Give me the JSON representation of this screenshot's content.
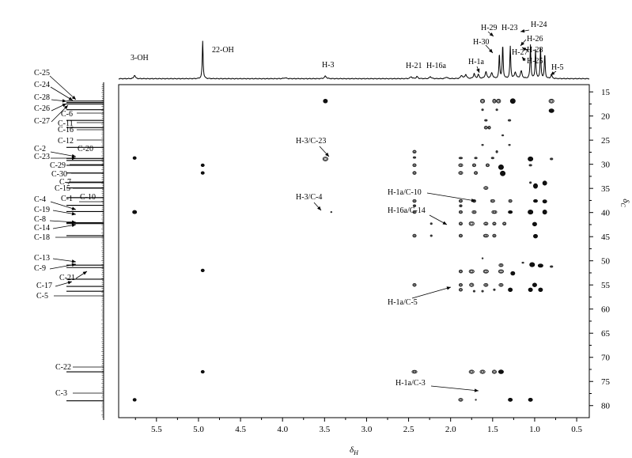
{
  "chart_data": {
    "type": "heatmap",
    "title": "",
    "xlabel": "δH",
    "ylabel": "δC",
    "xlim": [
      5.95,
      0.35
    ],
    "ylim": [
      13.5,
      82.5
    ],
    "x_ticks": [
      5.5,
      5.0,
      4.5,
      4.0,
      3.5,
      3.0,
      2.5,
      2.0,
      1.5,
      1.0,
      0.5
    ],
    "x_tick_labels": [
      "5.5",
      "5.0",
      "4.5",
      "4.0",
      "3.5",
      "3.0",
      "2.5",
      "2.0",
      "1.5",
      "1.0",
      "0.5"
    ],
    "y_ticks": [
      15,
      20,
      25,
      30,
      35,
      40,
      45,
      50,
      55,
      60,
      65,
      70,
      75,
      80
    ],
    "y_tick_labels": [
      "15",
      "20",
      "25",
      "30",
      "35",
      "40",
      "45",
      "50",
      "55",
      "60",
      "65",
      "70",
      "75",
      "80"
    ],
    "grid": false,
    "proton_peaks": [
      {
        "x": 5.76,
        "h": 0.09,
        "w": 0.01
      },
      {
        "x": 4.95,
        "h": 0.92,
        "w": 0.006
      },
      {
        "x": 3.97,
        "h": 0.02,
        "w": 0.02
      },
      {
        "x": 3.49,
        "h": 0.06,
        "w": 0.015
      },
      {
        "x": 2.47,
        "h": 0.05,
        "w": 0.012
      },
      {
        "x": 2.4,
        "h": 0.05,
        "w": 0.012
      },
      {
        "x": 2.24,
        "h": 0.05,
        "w": 0.012
      },
      {
        "x": 2.05,
        "h": 0.04,
        "w": 0.012
      },
      {
        "x": 1.87,
        "h": 0.08,
        "w": 0.012
      },
      {
        "x": 1.82,
        "h": 0.1,
        "w": 0.012
      },
      {
        "x": 1.72,
        "h": 0.12,
        "w": 0.01
      },
      {
        "x": 1.67,
        "h": 0.1,
        "w": 0.01
      },
      {
        "x": 1.58,
        "h": 0.16,
        "w": 0.012
      },
      {
        "x": 1.51,
        "h": 0.14,
        "w": 0.012
      },
      {
        "x": 1.42,
        "h": 0.6,
        "w": 0.006
      },
      {
        "x": 1.38,
        "h": 0.82,
        "w": 0.006
      },
      {
        "x": 1.29,
        "h": 0.78,
        "w": 0.006
      },
      {
        "x": 1.23,
        "h": 0.15,
        "w": 0.012
      },
      {
        "x": 1.16,
        "h": 0.18,
        "w": 0.012
      },
      {
        "x": 1.05,
        "h": 0.82,
        "w": 0.006
      },
      {
        "x": 0.99,
        "h": 0.7,
        "w": 0.006
      },
      {
        "x": 0.93,
        "h": 0.72,
        "w": 0.006
      },
      {
        "x": 0.88,
        "h": 0.6,
        "w": 0.006
      },
      {
        "x": 0.8,
        "h": 0.08,
        "w": 0.01
      }
    ],
    "proton_labels": [
      {
        "text": "3-OH"
      },
      {
        "text": "22-OH"
      },
      {
        "text": "H-3"
      },
      {
        "text": "H-21"
      },
      {
        "text": "H-16a"
      },
      {
        "text": "H-1a"
      },
      {
        "text": "H-30"
      },
      {
        "text": "H-29"
      },
      {
        "text": "H-23"
      },
      {
        "text": "H-27"
      },
      {
        "text": "H-24"
      },
      {
        "text": "H-26"
      },
      {
        "text": "H-28"
      },
      {
        "text": "H-25"
      },
      {
        "text": "H-5"
      }
    ],
    "carbon_peaks": [
      16.9,
      17.2,
      17.5,
      18.7,
      20.9,
      22.4,
      26.5,
      28.8,
      29.2,
      30.2,
      31.8,
      33.8,
      34.9,
      36.9,
      38.5,
      39.8,
      42.1,
      42.3,
      44.8,
      50.9,
      51.4,
      53.8,
      55.3,
      56.3,
      73.0,
      79.0
    ],
    "carbon_labels": [
      {
        "text": "C-25"
      },
      {
        "text": "C-24"
      },
      {
        "text": "C-28"
      },
      {
        "text": "C-26"
      },
      {
        "text": "C-27"
      },
      {
        "text": "C-6"
      },
      {
        "text": "C-11"
      },
      {
        "text": "C-16"
      },
      {
        "text": "C-12"
      },
      {
        "text": "C-20"
      },
      {
        "text": "C-2"
      },
      {
        "text": "C-23"
      },
      {
        "text": "C-29"
      },
      {
        "text": "C-30"
      },
      {
        "text": "C-7"
      },
      {
        "text": "C-15"
      },
      {
        "text": "C-1"
      },
      {
        "text": "C-10"
      },
      {
        "text": "C-4"
      },
      {
        "text": "C-19"
      },
      {
        "text": "C-8"
      },
      {
        "text": "C-14"
      },
      {
        "text": "C-18"
      },
      {
        "text": "C-13"
      },
      {
        "text": "C-9"
      },
      {
        "text": "C-21"
      },
      {
        "text": "C-17"
      },
      {
        "text": "C-5"
      },
      {
        "text": "C-22"
      },
      {
        "text": "C-3"
      }
    ],
    "cross_peaks": [
      {
        "x": 3.49,
        "y": 16.9,
        "w": 0.05,
        "h": 0.8,
        "style": "filled"
      },
      {
        "x": 1.62,
        "y": 16.9,
        "w": 0.05,
        "h": 0.8,
        "style": "open"
      },
      {
        "x": 1.48,
        "y": 16.9,
        "w": 0.04,
        "h": 0.8,
        "style": "open"
      },
      {
        "x": 1.43,
        "y": 16.9,
        "w": 0.05,
        "h": 0.8,
        "style": "open"
      },
      {
        "x": 1.26,
        "y": 16.9,
        "w": 0.06,
        "h": 1.0,
        "style": "filled"
      },
      {
        "x": 0.8,
        "y": 16.9,
        "w": 0.06,
        "h": 0.8,
        "style": "open"
      },
      {
        "x": 1.62,
        "y": 18.7,
        "w": 0.03,
        "h": 0.5,
        "style": "dot"
      },
      {
        "x": 1.45,
        "y": 18.7,
        "w": 0.03,
        "h": 0.5,
        "style": "dot"
      },
      {
        "x": 0.8,
        "y": 18.9,
        "w": 0.06,
        "h": 0.8,
        "style": "filled"
      },
      {
        "x": 1.58,
        "y": 20.9,
        "w": 0.04,
        "h": 0.5,
        "style": "dot"
      },
      {
        "x": 1.3,
        "y": 20.9,
        "w": 0.04,
        "h": 0.5,
        "style": "dot"
      },
      {
        "x": 1.58,
        "y": 22.4,
        "w": 0.04,
        "h": 0.6,
        "style": "open"
      },
      {
        "x": 1.54,
        "y": 22.4,
        "w": 0.03,
        "h": 0.6,
        "style": "open"
      },
      {
        "x": 1.38,
        "y": 24.0,
        "w": 0.03,
        "h": 0.4,
        "style": "dot"
      },
      {
        "x": 1.62,
        "y": 26.0,
        "w": 0.03,
        "h": 0.4,
        "style": "dot"
      },
      {
        "x": 1.3,
        "y": 26.0,
        "w": 0.03,
        "h": 0.4,
        "style": "dot"
      },
      {
        "x": 2.43,
        "y": 27.4,
        "w": 0.04,
        "h": 0.6,
        "style": "open"
      },
      {
        "x": 1.45,
        "y": 27.4,
        "w": 0.03,
        "h": 0.6,
        "style": "dot"
      },
      {
        "x": 5.76,
        "y": 28.7,
        "w": 0.04,
        "h": 0.6,
        "style": "filled"
      },
      {
        "x": 3.49,
        "y": 28.9,
        "w": 0.06,
        "h": 0.8,
        "style": "open"
      },
      {
        "x": 2.43,
        "y": 28.6,
        "w": 0.04,
        "h": 0.5,
        "style": "dot"
      },
      {
        "x": 1.88,
        "y": 28.7,
        "w": 0.05,
        "h": 0.5,
        "style": "dot"
      },
      {
        "x": 1.7,
        "y": 28.7,
        "w": 0.04,
        "h": 0.5,
        "style": "dot"
      },
      {
        "x": 1.5,
        "y": 28.7,
        "w": 0.04,
        "h": 0.5,
        "style": "dot"
      },
      {
        "x": 1.05,
        "y": 28.9,
        "w": 0.06,
        "h": 0.9,
        "style": "filled"
      },
      {
        "x": 0.8,
        "y": 28.9,
        "w": 0.04,
        "h": 0.5,
        "style": "dot"
      },
      {
        "x": 4.95,
        "y": 30.2,
        "w": 0.04,
        "h": 0.6,
        "style": "filled"
      },
      {
        "x": 2.43,
        "y": 30.2,
        "w": 0.04,
        "h": 0.6,
        "style": "open"
      },
      {
        "x": 1.88,
        "y": 30.2,
        "w": 0.05,
        "h": 0.6,
        "style": "open"
      },
      {
        "x": 1.72,
        "y": 30.2,
        "w": 0.04,
        "h": 0.6,
        "style": "open"
      },
      {
        "x": 1.56,
        "y": 30.2,
        "w": 0.04,
        "h": 0.6,
        "style": "open"
      },
      {
        "x": 1.4,
        "y": 30.6,
        "w": 0.06,
        "h": 1.0,
        "style": "filled"
      },
      {
        "x": 1.05,
        "y": 30.2,
        "w": 0.04,
        "h": 0.5,
        "style": "dot"
      },
      {
        "x": 4.95,
        "y": 31.8,
        "w": 0.04,
        "h": 0.6,
        "style": "filled"
      },
      {
        "x": 2.43,
        "y": 31.8,
        "w": 0.04,
        "h": 0.6,
        "style": "open"
      },
      {
        "x": 1.88,
        "y": 31.8,
        "w": 0.05,
        "h": 0.6,
        "style": "open"
      },
      {
        "x": 1.7,
        "y": 31.8,
        "w": 0.04,
        "h": 0.6,
        "style": "open"
      },
      {
        "x": 1.38,
        "y": 31.9,
        "w": 0.06,
        "h": 1.0,
        "style": "filled"
      },
      {
        "x": 1.05,
        "y": 33.8,
        "w": 0.03,
        "h": 0.5,
        "style": "dot"
      },
      {
        "x": 0.88,
        "y": 33.9,
        "w": 0.05,
        "h": 0.9,
        "style": "filled"
      },
      {
        "x": 1.58,
        "y": 34.9,
        "w": 0.05,
        "h": 0.6,
        "style": "open"
      },
      {
        "x": 0.99,
        "y": 34.5,
        "w": 0.05,
        "h": 1.0,
        "style": "filled"
      },
      {
        "x": 2.43,
        "y": 37.6,
        "w": 0.04,
        "h": 0.6,
        "style": "open"
      },
      {
        "x": 1.88,
        "y": 37.6,
        "w": 0.04,
        "h": 0.6,
        "style": "open"
      },
      {
        "x": 1.72,
        "y": 37.6,
        "w": 0.04,
        "h": 0.6,
        "style": "open"
      },
      {
        "x": 1.5,
        "y": 37.6,
        "w": 0.05,
        "h": 0.6,
        "style": "open"
      },
      {
        "x": 1.29,
        "y": 37.6,
        "w": 0.04,
        "h": 0.6,
        "style": "open"
      },
      {
        "x": 0.99,
        "y": 37.6,
        "w": 0.05,
        "h": 0.6,
        "style": "filled"
      },
      {
        "x": 0.88,
        "y": 37.7,
        "w": 0.05,
        "h": 0.7,
        "style": "filled"
      },
      {
        "x": 2.43,
        "y": 38.6,
        "w": 0.04,
        "h": 0.6,
        "style": "dot"
      },
      {
        "x": 1.88,
        "y": 38.6,
        "w": 0.04,
        "h": 0.6,
        "style": "dot"
      },
      {
        "x": 5.76,
        "y": 39.9,
        "w": 0.05,
        "h": 0.7,
        "style": "filled"
      },
      {
        "x": 3.42,
        "y": 39.9,
        "w": 0.02,
        "h": 0.4,
        "style": "dot"
      },
      {
        "x": 2.43,
        "y": 39.9,
        "w": 0.04,
        "h": 0.6,
        "style": "open"
      },
      {
        "x": 1.88,
        "y": 39.9,
        "w": 0.04,
        "h": 0.6,
        "style": "open"
      },
      {
        "x": 1.72,
        "y": 39.9,
        "w": 0.05,
        "h": 0.6,
        "style": "open"
      },
      {
        "x": 1.48,
        "y": 39.9,
        "w": 0.06,
        "h": 0.6,
        "style": "open"
      },
      {
        "x": 1.29,
        "y": 39.9,
        "w": 0.05,
        "h": 0.6,
        "style": "filled"
      },
      {
        "x": 1.05,
        "y": 39.9,
        "w": 0.06,
        "h": 0.9,
        "style": "filled"
      },
      {
        "x": 0.88,
        "y": 39.9,
        "w": 0.05,
        "h": 0.9,
        "style": "filled"
      },
      {
        "x": 2.23,
        "y": 42.3,
        "w": 0.03,
        "h": 0.5,
        "style": "dot"
      },
      {
        "x": 1.88,
        "y": 42.3,
        "w": 0.04,
        "h": 0.6,
        "style": "open"
      },
      {
        "x": 1.75,
        "y": 42.3,
        "w": 0.06,
        "h": 0.8,
        "style": "open"
      },
      {
        "x": 1.58,
        "y": 42.3,
        "w": 0.05,
        "h": 0.6,
        "style": "open"
      },
      {
        "x": 1.48,
        "y": 42.3,
        "w": 0.04,
        "h": 0.6,
        "style": "open"
      },
      {
        "x": 1.36,
        "y": 42.3,
        "w": 0.04,
        "h": 0.6,
        "style": "open"
      },
      {
        "x": 1.0,
        "y": 42.4,
        "w": 0.05,
        "h": 0.8,
        "style": "filled"
      },
      {
        "x": 2.43,
        "y": 44.8,
        "w": 0.04,
        "h": 0.6,
        "style": "open"
      },
      {
        "x": 2.23,
        "y": 44.8,
        "w": 0.03,
        "h": 0.5,
        "style": "dot"
      },
      {
        "x": 1.88,
        "y": 44.8,
        "w": 0.04,
        "h": 0.6,
        "style": "open"
      },
      {
        "x": 1.58,
        "y": 44.8,
        "w": 0.06,
        "h": 0.6,
        "style": "open"
      },
      {
        "x": 1.48,
        "y": 44.8,
        "w": 0.04,
        "h": 0.6,
        "style": "open"
      },
      {
        "x": 0.99,
        "y": 44.9,
        "w": 0.05,
        "h": 0.8,
        "style": "filled"
      },
      {
        "x": 1.62,
        "y": 49.5,
        "w": 0.02,
        "h": 0.4,
        "style": "dot"
      },
      {
        "x": 1.4,
        "y": 50.9,
        "w": 0.05,
        "h": 0.6,
        "style": "open"
      },
      {
        "x": 1.14,
        "y": 50.4,
        "w": 0.03,
        "h": 0.4,
        "style": "dot"
      },
      {
        "x": 1.03,
        "y": 50.8,
        "w": 0.06,
        "h": 0.9,
        "style": "filled"
      },
      {
        "x": 0.93,
        "y": 51.0,
        "w": 0.06,
        "h": 0.7,
        "style": "filled"
      },
      {
        "x": 0.8,
        "y": 51.2,
        "w": 0.04,
        "h": 0.5,
        "style": "dot"
      },
      {
        "x": 4.95,
        "y": 52.0,
        "w": 0.04,
        "h": 0.6,
        "style": "filled"
      },
      {
        "x": 1.88,
        "y": 52.2,
        "w": 0.04,
        "h": 0.6,
        "style": "open"
      },
      {
        "x": 1.75,
        "y": 52.2,
        "w": 0.06,
        "h": 0.7,
        "style": "open"
      },
      {
        "x": 1.58,
        "y": 52.2,
        "w": 0.06,
        "h": 0.7,
        "style": "open"
      },
      {
        "x": 1.4,
        "y": 52.2,
        "w": 0.06,
        "h": 0.7,
        "style": "open"
      },
      {
        "x": 1.26,
        "y": 52.6,
        "w": 0.05,
        "h": 0.8,
        "style": "filled"
      },
      {
        "x": 2.43,
        "y": 55.0,
        "w": 0.04,
        "h": 0.6,
        "style": "open"
      },
      {
        "x": 1.88,
        "y": 55.0,
        "w": 0.04,
        "h": 0.6,
        "style": "open"
      },
      {
        "x": 1.75,
        "y": 55.0,
        "w": 0.05,
        "h": 0.7,
        "style": "open"
      },
      {
        "x": 1.58,
        "y": 55.0,
        "w": 0.05,
        "h": 0.6,
        "style": "open"
      },
      {
        "x": 1.4,
        "y": 55.0,
        "w": 0.05,
        "h": 0.6,
        "style": "open"
      },
      {
        "x": 1.0,
        "y": 55.0,
        "w": 0.05,
        "h": 0.8,
        "style": "filled"
      },
      {
        "x": 1.88,
        "y": 56.0,
        "w": 0.04,
        "h": 0.6,
        "style": "open"
      },
      {
        "x": 1.72,
        "y": 56.3,
        "w": 0.03,
        "h": 0.5,
        "style": "dot"
      },
      {
        "x": 1.62,
        "y": 56.3,
        "w": 0.03,
        "h": 0.5,
        "style": "dot"
      },
      {
        "x": 1.48,
        "y": 56.0,
        "w": 0.03,
        "h": 0.5,
        "style": "dot"
      },
      {
        "x": 1.29,
        "y": 56.0,
        "w": 0.05,
        "h": 0.8,
        "style": "filled"
      },
      {
        "x": 1.05,
        "y": 56.0,
        "w": 0.05,
        "h": 0.8,
        "style": "filled"
      },
      {
        "x": 0.93,
        "y": 56.0,
        "w": 0.05,
        "h": 0.8,
        "style": "filled"
      },
      {
        "x": 4.95,
        "y": 73.0,
        "w": 0.04,
        "h": 0.6,
        "style": "filled"
      },
      {
        "x": 2.43,
        "y": 73.0,
        "w": 0.06,
        "h": 0.6,
        "style": "open"
      },
      {
        "x": 1.75,
        "y": 73.0,
        "w": 0.06,
        "h": 0.7,
        "style": "open"
      },
      {
        "x": 1.62,
        "y": 73.0,
        "w": 0.06,
        "h": 0.7,
        "style": "open"
      },
      {
        "x": 1.48,
        "y": 73.0,
        "w": 0.05,
        "h": 0.7,
        "style": "open"
      },
      {
        "x": 1.4,
        "y": 73.0,
        "w": 0.06,
        "h": 0.8,
        "style": "filled"
      },
      {
        "x": 5.76,
        "y": 78.8,
        "w": 0.04,
        "h": 0.6,
        "style": "filled"
      },
      {
        "x": 1.88,
        "y": 78.8,
        "w": 0.05,
        "h": 0.6,
        "style": "open"
      },
      {
        "x": 1.7,
        "y": 78.8,
        "w": 0.02,
        "h": 0.4,
        "style": "dot"
      },
      {
        "x": 1.29,
        "y": 78.8,
        "w": 0.05,
        "h": 0.7,
        "style": "filled"
      },
      {
        "x": 1.05,
        "y": 78.8,
        "w": 0.05,
        "h": 0.7,
        "style": "filled"
      }
    ],
    "annotations": [
      {
        "text": "H-3/C-23"
      },
      {
        "text": "H-3/C-4"
      },
      {
        "text": "H-1a/C-10"
      },
      {
        "text": "H-16a/C-14"
      },
      {
        "text": "H-1a/C-5"
      },
      {
        "text": "H-1a/C-3"
      }
    ]
  }
}
